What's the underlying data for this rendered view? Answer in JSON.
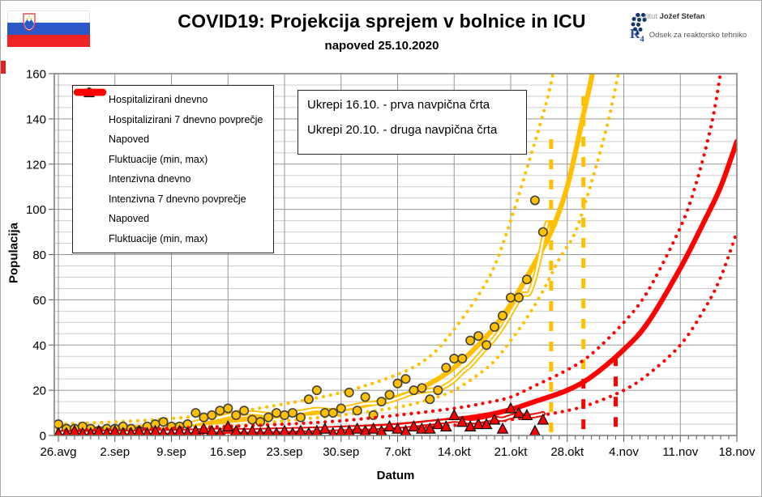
{
  "header": {
    "title": "COVID19: Projekcija sprejem v bolnice in ICU",
    "subtitle": "napoved 25.10.2020",
    "flag_name": "slovenia-flag",
    "logos": {
      "ijs_prefix": "Institut",
      "ijs_name": "Jožef Stefan",
      "r4_glyph": "R",
      "r4_sub": "4",
      "r4_label": "Odsek za reaktorsko tehniko"
    }
  },
  "annotation": {
    "line1": "Ukrepi 16.10. - prva navpična črta",
    "line2": "Ukrepi 20.10. - druga navpična črta"
  },
  "chart_data": {
    "type": "line",
    "title": "COVID19: Projekcija sprejem v bolnice in ICU",
    "subtitle": "napoved 25.10.2020",
    "xlabel": "Datum",
    "ylabel": "Populacija",
    "ylim": [
      0,
      160
    ],
    "y_major_step": 20,
    "y_minor_step": 5,
    "x_tick_labels": [
      "26.avg",
      "2.sep",
      "9.sep",
      "16.sep",
      "23.sep",
      "30.sep",
      "7.okt",
      "14.okt",
      "21.okt",
      "28.okt",
      "4.nov",
      "11.nov",
      "18.nov"
    ],
    "x_tick_days": [
      0,
      7,
      14,
      21,
      28,
      35,
      42,
      49,
      56,
      63,
      70,
      77,
      84
    ],
    "x_range_days": [
      -0.5,
      84
    ],
    "grid": true,
    "legend_position": "top-left",
    "colors": {
      "hospital": "#FFC000",
      "icu": "#FE0000"
    },
    "legend_order": [
      "hosp_daily",
      "hosp_avg7",
      "hosp_forecast",
      "hosp_fluct",
      "icu_daily",
      "icu_avg7",
      "icu_forecast",
      "icu_fluct"
    ],
    "vlines": [
      {
        "x_day": 61,
        "y_from": 0,
        "y_to": 131,
        "group": "hospital"
      },
      {
        "x_day": 65,
        "y_from": 25,
        "y_to": 150,
        "group": "hospital"
      },
      {
        "x_day": 65,
        "y_from": 0,
        "y_to": 25,
        "group": "icu"
      },
      {
        "x_day": 69,
        "y_from": 0,
        "y_to": 35,
        "group": "icu"
      }
    ],
    "series": {
      "hosp_daily": {
        "label": "Hospitalizirani dnevno",
        "type": "markers",
        "marker": "circle",
        "group": "hospital",
        "start_day": 0,
        "values": [
          5,
          3,
          3,
          4,
          3,
          2,
          3,
          3,
          4,
          3,
          2,
          4,
          5,
          6,
          4,
          4,
          5,
          10,
          8,
          9,
          11,
          12,
          9,
          11,
          7,
          6,
          8,
          10,
          9,
          10,
          8,
          16,
          20,
          10,
          10,
          12,
          19,
          11,
          17,
          9,
          15,
          18,
          23,
          25,
          20,
          21,
          16,
          20,
          30,
          34,
          34,
          42,
          44,
          40,
          48,
          53,
          61,
          61,
          69,
          104,
          90
        ]
      },
      "hosp_avg7": {
        "label": "Hospitalizirani 7 dnevno povprečje",
        "type": "line-outline",
        "group": "hospital",
        "points": [
          [
            0,
            3
          ],
          [
            2,
            2.9
          ],
          [
            4,
            3.1
          ],
          [
            6,
            2.9
          ],
          [
            8,
            3.2
          ],
          [
            10,
            3.1
          ],
          [
            12,
            3.8
          ],
          [
            14,
            4.4
          ],
          [
            16,
            5
          ],
          [
            18,
            6.5
          ],
          [
            20,
            8
          ],
          [
            22,
            9.5
          ],
          [
            24,
            10
          ],
          [
            26,
            9.3
          ],
          [
            28,
            9.6
          ],
          [
            30,
            10.4
          ],
          [
            32,
            11.5
          ],
          [
            34,
            11
          ],
          [
            36,
            12.5
          ],
          [
            38,
            14
          ],
          [
            40,
            14.5
          ],
          [
            42,
            16.5
          ],
          [
            44,
            19
          ],
          [
            46,
            20
          ],
          [
            47,
            20.5
          ],
          [
            48,
            22
          ],
          [
            49,
            24.5
          ],
          [
            50,
            28
          ],
          [
            51,
            31
          ],
          [
            52,
            35
          ],
          [
            53,
            39
          ],
          [
            54,
            43
          ],
          [
            55,
            48
          ],
          [
            56,
            54
          ],
          [
            57,
            60
          ],
          [
            57.6,
            62.5
          ],
          [
            58.3,
            63
          ],
          [
            59,
            70
          ],
          [
            59.6,
            79
          ],
          [
            60.1,
            88
          ],
          [
            60.5,
            94
          ]
        ]
      },
      "hosp_forecast": {
        "label": "Napoved",
        "type": "line-thick",
        "group": "hospital",
        "points": [
          [
            0,
            2.8
          ],
          [
            7,
            3.2
          ],
          [
            14,
            4.3
          ],
          [
            21,
            6.5
          ],
          [
            28,
            9
          ],
          [
            35,
            11.5
          ],
          [
            42,
            17
          ],
          [
            46,
            23
          ],
          [
            49,
            30
          ],
          [
            52,
            40
          ],
          [
            54,
            48
          ],
          [
            56,
            58
          ],
          [
            58,
            70
          ],
          [
            60,
            83
          ],
          [
            61,
            90
          ],
          [
            62,
            99
          ],
          [
            63,
            110
          ],
          [
            64,
            125
          ],
          [
            65,
            142
          ],
          [
            66,
            158
          ],
          [
            66.6,
            172
          ]
        ]
      },
      "hosp_fluct": {
        "label": "Fluktuacije (min, max)",
        "type": "dotted",
        "group": "hospital",
        "max_points": [
          [
            0,
            5
          ],
          [
            7,
            6
          ],
          [
            14,
            7.5
          ],
          [
            21,
            10
          ],
          [
            28,
            14
          ],
          [
            35,
            19
          ],
          [
            42,
            27
          ],
          [
            46,
            35
          ],
          [
            49,
            47
          ],
          [
            52,
            62
          ],
          [
            54,
            75
          ],
          [
            56,
            95
          ],
          [
            58,
            118
          ],
          [
            60,
            142
          ],
          [
            61,
            156
          ],
          [
            61.8,
            172
          ]
        ],
        "min_points": [
          [
            0,
            1.3
          ],
          [
            7,
            1.8
          ],
          [
            14,
            2.5
          ],
          [
            21,
            4
          ],
          [
            28,
            6.5
          ],
          [
            35,
            9
          ],
          [
            42,
            12.5
          ],
          [
            46,
            16
          ],
          [
            49,
            20
          ],
          [
            52,
            27
          ],
          [
            54,
            33
          ],
          [
            56,
            42
          ],
          [
            58,
            52
          ],
          [
            60,
            64
          ],
          [
            62,
            78
          ],
          [
            64,
            90
          ],
          [
            66,
            112
          ],
          [
            68,
            138
          ],
          [
            69.8,
            168
          ]
        ]
      },
      "icu_daily": {
        "label": "Intenzivna dnevno",
        "type": "markers",
        "marker": "triangle",
        "group": "icu",
        "start_day": 0,
        "values": [
          1,
          1,
          2,
          1,
          1,
          2,
          1,
          2,
          1,
          1,
          2,
          1,
          2,
          1,
          1,
          2,
          1,
          2,
          3,
          2,
          1,
          4,
          2,
          1,
          2,
          1,
          2,
          1,
          2,
          1,
          2,
          1,
          2,
          3,
          1,
          2,
          2,
          3,
          2,
          3,
          2,
          4,
          3,
          2,
          4,
          3,
          3,
          5,
          4,
          9,
          6,
          4,
          5,
          5,
          7,
          3,
          12,
          10,
          9,
          2,
          7
        ]
      },
      "icu_avg7": {
        "label": "Intenzivna 7 dnevno povprečje",
        "type": "line-outline",
        "group": "icu",
        "points": [
          [
            0,
            1.2
          ],
          [
            3,
            1.1
          ],
          [
            6,
            1.4
          ],
          [
            9,
            1.3
          ],
          [
            12,
            1.6
          ],
          [
            15,
            1.7
          ],
          [
            18,
            2.1
          ],
          [
            21,
            2.2
          ],
          [
            24,
            2.1
          ],
          [
            27,
            2.4
          ],
          [
            30,
            2.6
          ],
          [
            33,
            2.9
          ],
          [
            36,
            3.3
          ],
          [
            39,
            3.6
          ],
          [
            42,
            4.2
          ],
          [
            44,
            4.8
          ],
          [
            46,
            5.6
          ],
          [
            48,
            6.3
          ],
          [
            49,
            6.8
          ],
          [
            50,
            6.4
          ],
          [
            51,
            6
          ],
          [
            52,
            6.3
          ],
          [
            53,
            7
          ],
          [
            54,
            7.6
          ],
          [
            55,
            7.2
          ],
          [
            56,
            8.3
          ],
          [
            57,
            9
          ],
          [
            58,
            8.4
          ],
          [
            59,
            8.8
          ],
          [
            60,
            9.6
          ]
        ]
      },
      "icu_forecast": {
        "label": "Napoved",
        "type": "line-thick",
        "group": "icu",
        "points": [
          [
            0,
            1
          ],
          [
            7,
            1.2
          ],
          [
            14,
            1.5
          ],
          [
            21,
            1.9
          ],
          [
            28,
            2.4
          ],
          [
            35,
            3.2
          ],
          [
            42,
            4.5
          ],
          [
            49,
            7
          ],
          [
            53,
            9
          ],
          [
            56,
            11.5
          ],
          [
            59,
            15
          ],
          [
            63,
            20
          ],
          [
            66,
            26
          ],
          [
            70,
            38
          ],
          [
            73,
            50
          ],
          [
            77,
            74
          ],
          [
            80,
            95
          ],
          [
            82,
            110
          ],
          [
            84,
            130
          ]
        ]
      },
      "icu_fluct": {
        "label": "Fluktuacije (min, max)",
        "type": "dotted",
        "group": "icu",
        "max_points": [
          [
            0,
            2.2
          ],
          [
            7,
            2.6
          ],
          [
            14,
            3.2
          ],
          [
            21,
            4
          ],
          [
            28,
            5
          ],
          [
            35,
            6.5
          ],
          [
            42,
            9
          ],
          [
            49,
            12
          ],
          [
            53,
            14.5
          ],
          [
            56,
            17
          ],
          [
            59,
            22
          ],
          [
            63,
            29
          ],
          [
            66,
            36
          ],
          [
            70,
            50
          ],
          [
            73,
            64
          ],
          [
            77,
            92
          ],
          [
            79,
            112
          ],
          [
            81,
            140
          ],
          [
            82.3,
            168
          ]
        ],
        "min_points": [
          [
            0,
            0.4
          ],
          [
            7,
            0.5
          ],
          [
            14,
            0.8
          ],
          [
            21,
            1
          ],
          [
            28,
            1.5
          ],
          [
            35,
            2
          ],
          [
            42,
            3
          ],
          [
            49,
            4.5
          ],
          [
            53,
            5.5
          ],
          [
            56,
            7
          ],
          [
            59,
            8.5
          ],
          [
            63,
            11
          ],
          [
            66,
            14
          ],
          [
            70,
            20
          ],
          [
            73,
            27
          ],
          [
            77,
            40
          ],
          [
            80,
            56
          ],
          [
            82,
            70
          ],
          [
            84,
            90
          ]
        ]
      }
    }
  }
}
